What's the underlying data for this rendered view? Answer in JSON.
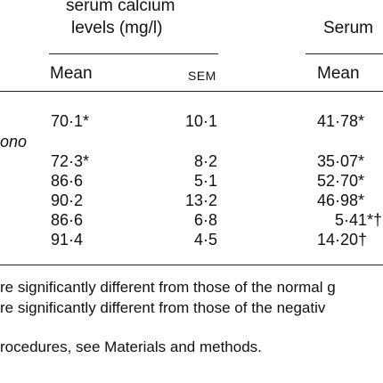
{
  "table": {
    "group_header_1_line1": "serum calcium",
    "group_header_1_line2": "levels (mg/l)",
    "group_header_2": "Serum",
    "subheaders": {
      "mean1": "Mean",
      "sem": "SEM",
      "mean2": "Mean"
    },
    "row_label_fragment": "ono",
    "rows": [
      {
        "mean": "70·1*",
        "sem": "10·1",
        "mean2": "41·78*"
      },
      {
        "mean": "72·3*",
        "sem": "8·2",
        "mean2": "35·07*"
      },
      {
        "mean": "86·6",
        "sem": "5·1",
        "mean2": "52·70*"
      },
      {
        "mean": "90·2",
        "sem": "13·2",
        "mean2": "46·98*"
      },
      {
        "mean": "86·6",
        "sem": "6·8",
        "mean2": "5·41*†"
      },
      {
        "mean": "91·4",
        "sem": "4·5",
        "mean2": "14·20†"
      }
    ]
  },
  "footnotes": {
    "line1": "re significantly different from those of the normal g",
    "line2": "re significantly different from those of the negativ",
    "line3": "rocedures, see Materials and methods."
  }
}
